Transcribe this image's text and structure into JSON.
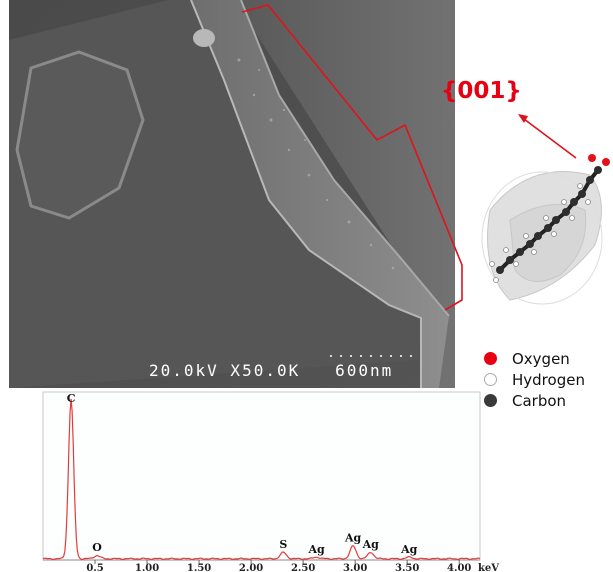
{
  "sem_image": {
    "caption": "20.0kV X50.0K   600nm"
  },
  "facet_label": "{001}",
  "legend": [
    {
      "label": "Oxygen",
      "color": "#e60012"
    },
    {
      "label": "Hydrogen",
      "color": "#ffffff"
    },
    {
      "label": "Carbon",
      "color": "#3a3a3a"
    }
  ],
  "chart_data": {
    "type": "line",
    "title": "",
    "xlabel": "",
    "ylabel": "",
    "x_unit": "keV",
    "xlim": [
      0,
      4.2
    ],
    "ylim": [
      0,
      100
    ],
    "x_ticks": [
      {
        "value": 0.5,
        "label": "0.5"
      },
      {
        "value": 1.0,
        "label": "1.00"
      },
      {
        "value": 1.5,
        "label": "1.50"
      },
      {
        "value": 2.0,
        "label": "2.00"
      },
      {
        "value": 2.5,
        "label": "2.50"
      },
      {
        "value": 3.0,
        "label": "3.00"
      },
      {
        "value": 3.5,
        "label": "3.50"
      },
      {
        "value": 4.0,
        "label": "4.00"
      }
    ],
    "x_unit_label": "keV",
    "peaks": [
      {
        "label": "C",
        "energy": 0.27,
        "intensity": 100
      },
      {
        "label": "O",
        "energy": 0.52,
        "intensity": 2
      },
      {
        "label": "S",
        "energy": 2.31,
        "intensity": 4
      },
      {
        "label": "Ag",
        "energy": 2.63,
        "intensity": 1
      },
      {
        "label": "Ag",
        "energy": 2.98,
        "intensity": 8
      },
      {
        "label": "Ag",
        "energy": 3.15,
        "intensity": 4
      },
      {
        "label": "Ag",
        "energy": 3.52,
        "intensity": 1
      }
    ],
    "line_color": "#e8393a"
  }
}
